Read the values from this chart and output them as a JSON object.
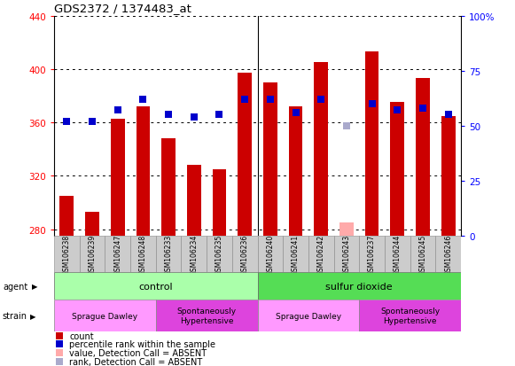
{
  "title": "GDS2372 / 1374483_at",
  "samples": [
    "GSM106238",
    "GSM106239",
    "GSM106247",
    "GSM106248",
    "GSM106233",
    "GSM106234",
    "GSM106235",
    "GSM106236",
    "GSM106240",
    "GSM106241",
    "GSM106242",
    "GSM106243",
    "GSM106237",
    "GSM106244",
    "GSM106245",
    "GSM106246"
  ],
  "bar_values": [
    305,
    293,
    363,
    372,
    348,
    328,
    325,
    397,
    390,
    372,
    405,
    285,
    413,
    375,
    393,
    365
  ],
  "bar_absent": [
    false,
    false,
    false,
    false,
    false,
    false,
    false,
    false,
    false,
    false,
    false,
    true,
    false,
    false,
    false,
    false
  ],
  "rank_values": [
    52,
    52,
    57,
    62,
    55,
    54,
    55,
    62,
    62,
    56,
    62,
    50,
    60,
    57,
    58,
    55
  ],
  "rank_absent": [
    false,
    false,
    false,
    false,
    false,
    false,
    false,
    false,
    false,
    false,
    false,
    true,
    false,
    false,
    false,
    false
  ],
  "bar_color": "#cc0000",
  "bar_absent_color": "#ffaaaa",
  "rank_color": "#0000cc",
  "rank_absent_color": "#aaaacc",
  "ylim_left": [
    275,
    440
  ],
  "ylim_right": [
    0,
    100
  ],
  "yticks_left": [
    280,
    320,
    360,
    400,
    440
  ],
  "yticks_right": [
    0,
    25,
    50,
    75,
    100
  ],
  "agent_groups": [
    {
      "label": "control",
      "start": 0,
      "end": 8,
      "color": "#aaffaa"
    },
    {
      "label": "sulfur dioxide",
      "start": 8,
      "end": 16,
      "color": "#55dd55"
    }
  ],
  "strain_groups": [
    {
      "label": "Sprague Dawley",
      "start": 0,
      "end": 4,
      "color": "#ff88ff"
    },
    {
      "label": "Spontaneously\nHypertensive",
      "start": 4,
      "end": 8,
      "color": "#ee44ee"
    },
    {
      "label": "Sprague Dawley",
      "start": 8,
      "end": 12,
      "color": "#ff88ff"
    },
    {
      "label": "Spontaneously\nHypertensive",
      "start": 12,
      "end": 16,
      "color": "#ee44ee"
    }
  ],
  "legend_items": [
    {
      "color": "#cc0000",
      "label": "count"
    },
    {
      "color": "#0000cc",
      "label": "percentile rank within the sample"
    },
    {
      "color": "#ffaaaa",
      "label": "value, Detection Call = ABSENT"
    },
    {
      "color": "#aaaacc",
      "label": "rank, Detection Call = ABSENT"
    }
  ]
}
